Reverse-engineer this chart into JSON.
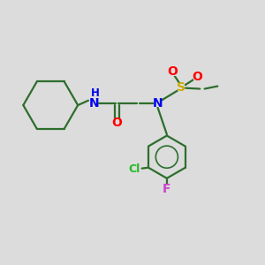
{
  "background_color": "#dcdcdc",
  "atom_colors": {
    "C": "#2d6e2d",
    "N": "#0000ee",
    "O": "#ff0000",
    "S": "#ccaa00",
    "Cl": "#22bb22",
    "F": "#cc44cc",
    "H": "#2d6e2d"
  },
  "bond_color": "#2d6e2d",
  "bond_lw": 1.6,
  "figsize": [
    3.0,
    3.0
  ],
  "dpi": 100
}
